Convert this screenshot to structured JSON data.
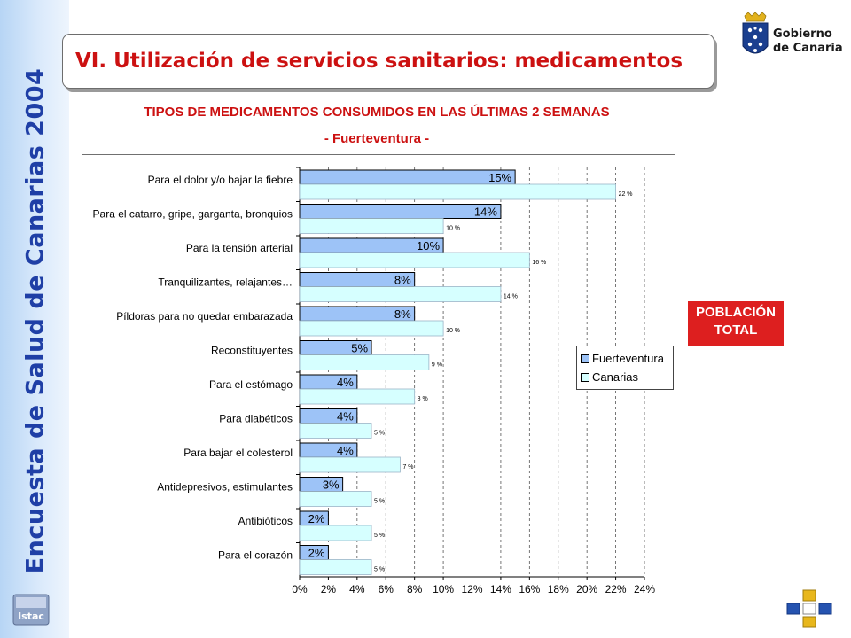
{
  "sidebar": {
    "title": "Encuesta de Salud de Canarias 2004",
    "logo_text": "Istac"
  },
  "header": {
    "title": "VI. Utilización de servicios sanitarios: medicamentos"
  },
  "logo": {
    "line1": "Gobierno",
    "line2": "de Canarias"
  },
  "badge": {
    "line1": "POBLACIÓN",
    "line2": "TOTAL"
  },
  "colors": {
    "title_red": "#cc1111",
    "fuerteventura": "#9dc3f7",
    "canarias": "#d6ffff",
    "badge": "#dd1f1f"
  },
  "chart_data": {
    "type": "bar",
    "orientation": "horizontal",
    "title": "TIPOS DE MEDICAMENTOS CONSUMIDOS EN LAS ÚLTIMAS 2 SEMANAS",
    "subtitle": "- Fuerteventura -",
    "categories": [
      "Para el dolor y/o bajar la fiebre",
      "Para el catarro, gripe, garganta, bronquios",
      "Para la tensión arterial",
      "Tranquilizantes, relajantes…",
      "Píldoras para no quedar embarazada",
      "Reconstituyentes",
      "Para el estómago",
      "Para diabéticos",
      "Para bajar el colesterol",
      "Antidepresivos, estimulantes",
      "Antibióticos",
      "Para el corazón"
    ],
    "series": [
      {
        "name": "Fuerteventura",
        "values": [
          15,
          14,
          10,
          8,
          8,
          5,
          4,
          4,
          4,
          3,
          2,
          2
        ],
        "labels": [
          "15%",
          "14%",
          "10%",
          "8%",
          "8%",
          "5%",
          "4%",
          "4%",
          "4%",
          "3%",
          "2%",
          "2%"
        ]
      },
      {
        "name": "Canarias",
        "values": [
          22,
          10,
          16,
          14,
          10,
          9,
          8,
          5,
          7,
          5,
          5,
          5
        ],
        "labels": [
          "22 %",
          "10 %",
          "16 %",
          "14 %",
          "10 %",
          "9 %",
          "8 %",
          "5 %",
          "7 %",
          "5 %",
          "5 %",
          "5 %"
        ]
      }
    ],
    "xlim": [
      0,
      24
    ],
    "xticks": [
      "0%",
      "2%",
      "4%",
      "6%",
      "8%",
      "10%",
      "12%",
      "14%",
      "16%",
      "18%",
      "20%",
      "22%",
      "24%"
    ],
    "grid": "vertical-dashed",
    "legend": "right"
  }
}
